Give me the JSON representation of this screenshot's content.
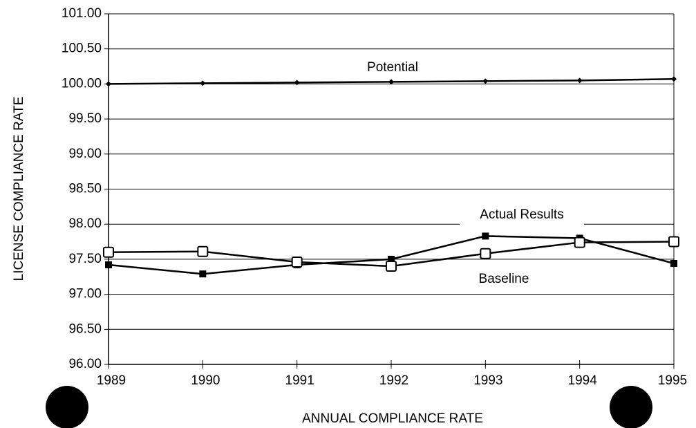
{
  "chart_data": {
    "type": "line",
    "y_label": "LICENSE COMPLIANCE RATE",
    "x_label": "ANNUAL COMPLIANCE RATE",
    "categories": [
      "1989",
      "1990",
      "1991",
      "1992",
      "1993",
      "1994",
      "1995"
    ],
    "series": [
      {
        "name": "Potential",
        "color": "#000000",
        "marker": "diamond",
        "values": [
          100.0,
          100.01,
          100.02,
          100.03,
          100.04,
          100.05,
          100.07
        ]
      },
      {
        "name": "Actual Results",
        "color": "#000000",
        "marker": "filled-square",
        "values": [
          97.42,
          97.29,
          97.42,
          97.5,
          97.83,
          97.8,
          97.44
        ]
      },
      {
        "name": "Baseline",
        "color": "#000000",
        "marker": "open-square",
        "values": [
          97.6,
          97.61,
          97.46,
          97.4,
          97.58,
          97.74,
          97.75
        ]
      }
    ],
    "ylim": [
      96,
      101
    ],
    "yticks": [
      {
        "value": 96,
        "label": "96.00"
      },
      {
        "value": 96.5,
        "label": "96.50"
      },
      {
        "value": 97,
        "label": "97.00"
      },
      {
        "value": 97.5,
        "label": "97.50"
      },
      {
        "value": 98,
        "label": "98.00"
      },
      {
        "value": 98.5,
        "label": "98.50"
      },
      {
        "value": 99,
        "label": "99.00"
      },
      {
        "value": 99.5,
        "label": "99.50"
      },
      {
        "value": 100,
        "label": "100.00"
      },
      {
        "value": 100.5,
        "label": "100.50"
      },
      {
        "value": 101,
        "label": "101.00"
      }
    ],
    "grid": true
  }
}
